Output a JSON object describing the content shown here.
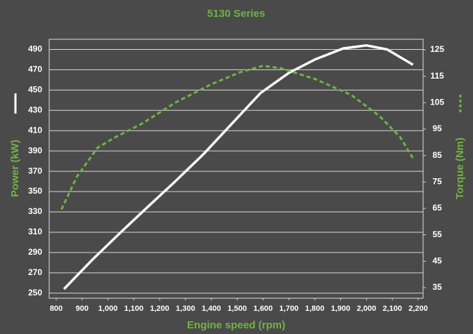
{
  "chart_data": {
    "type": "line",
    "title": "5130 Series",
    "xlabel": "Engine speed (rpm)",
    "xlim": [
      800,
      2200
    ],
    "xticks": [
      800,
      900,
      {
        "value": 1000,
        "label": "1,000"
      },
      {
        "value": 1100,
        "label": "1,100"
      },
      {
        "value": 1200,
        "label": "1,200"
      },
      {
        "value": 1300,
        "label": "1,300"
      },
      {
        "value": 1400,
        "label": "1,400"
      },
      {
        "value": 1500,
        "label": "1,500"
      },
      {
        "value": 1600,
        "label": "1,600"
      },
      {
        "value": 1700,
        "label": "1,700"
      },
      {
        "value": 1800,
        "label": "1,800"
      },
      {
        "value": 1900,
        "label": "1,900"
      },
      {
        "value": 2000,
        "label": "2,000"
      },
      {
        "value": 2100,
        "label": "2,100"
      },
      {
        "value": 2200,
        "label": "2,200"
      }
    ],
    "ylim": [
      245,
      500
    ],
    "yticks": [
      250,
      270,
      290,
      310,
      330,
      350,
      370,
      390,
      410,
      430,
      450,
      470,
      490
    ],
    "y2lim": [
      31,
      129
    ],
    "y2ticks": [
      35,
      45,
      55,
      65,
      75,
      85,
      95,
      105,
      115,
      125
    ],
    "grid": true,
    "series": [
      {
        "name": "Power (kW)",
        "color": "#ffffff",
        "dash": false,
        "x": [
          830,
          940,
          1050,
          1150,
          1260,
          1370,
          1480,
          1590,
          1700,
          1800,
          1910,
          2000,
          2080,
          2180
        ],
        "values": [
          254,
          283,
          310,
          334,
          360,
          387,
          417,
          447,
          467,
          480,
          491,
          494,
          490,
          475
        ]
      },
      {
        "name": "Torque (Nm)",
        "color": "#6fb43f",
        "dash": true,
        "axis": "y2",
        "x": [
          820,
          880,
          960,
          1030,
          1130,
          1260,
          1400,
          1510,
          1600,
          1670,
          1800,
          1940,
          2050,
          2130,
          2180
        ],
        "values": [
          64.6,
          77,
          88,
          92,
          97,
          105,
          112,
          116.5,
          119,
          118,
          114,
          108,
          100,
          92,
          84
        ]
      }
    ]
  }
}
